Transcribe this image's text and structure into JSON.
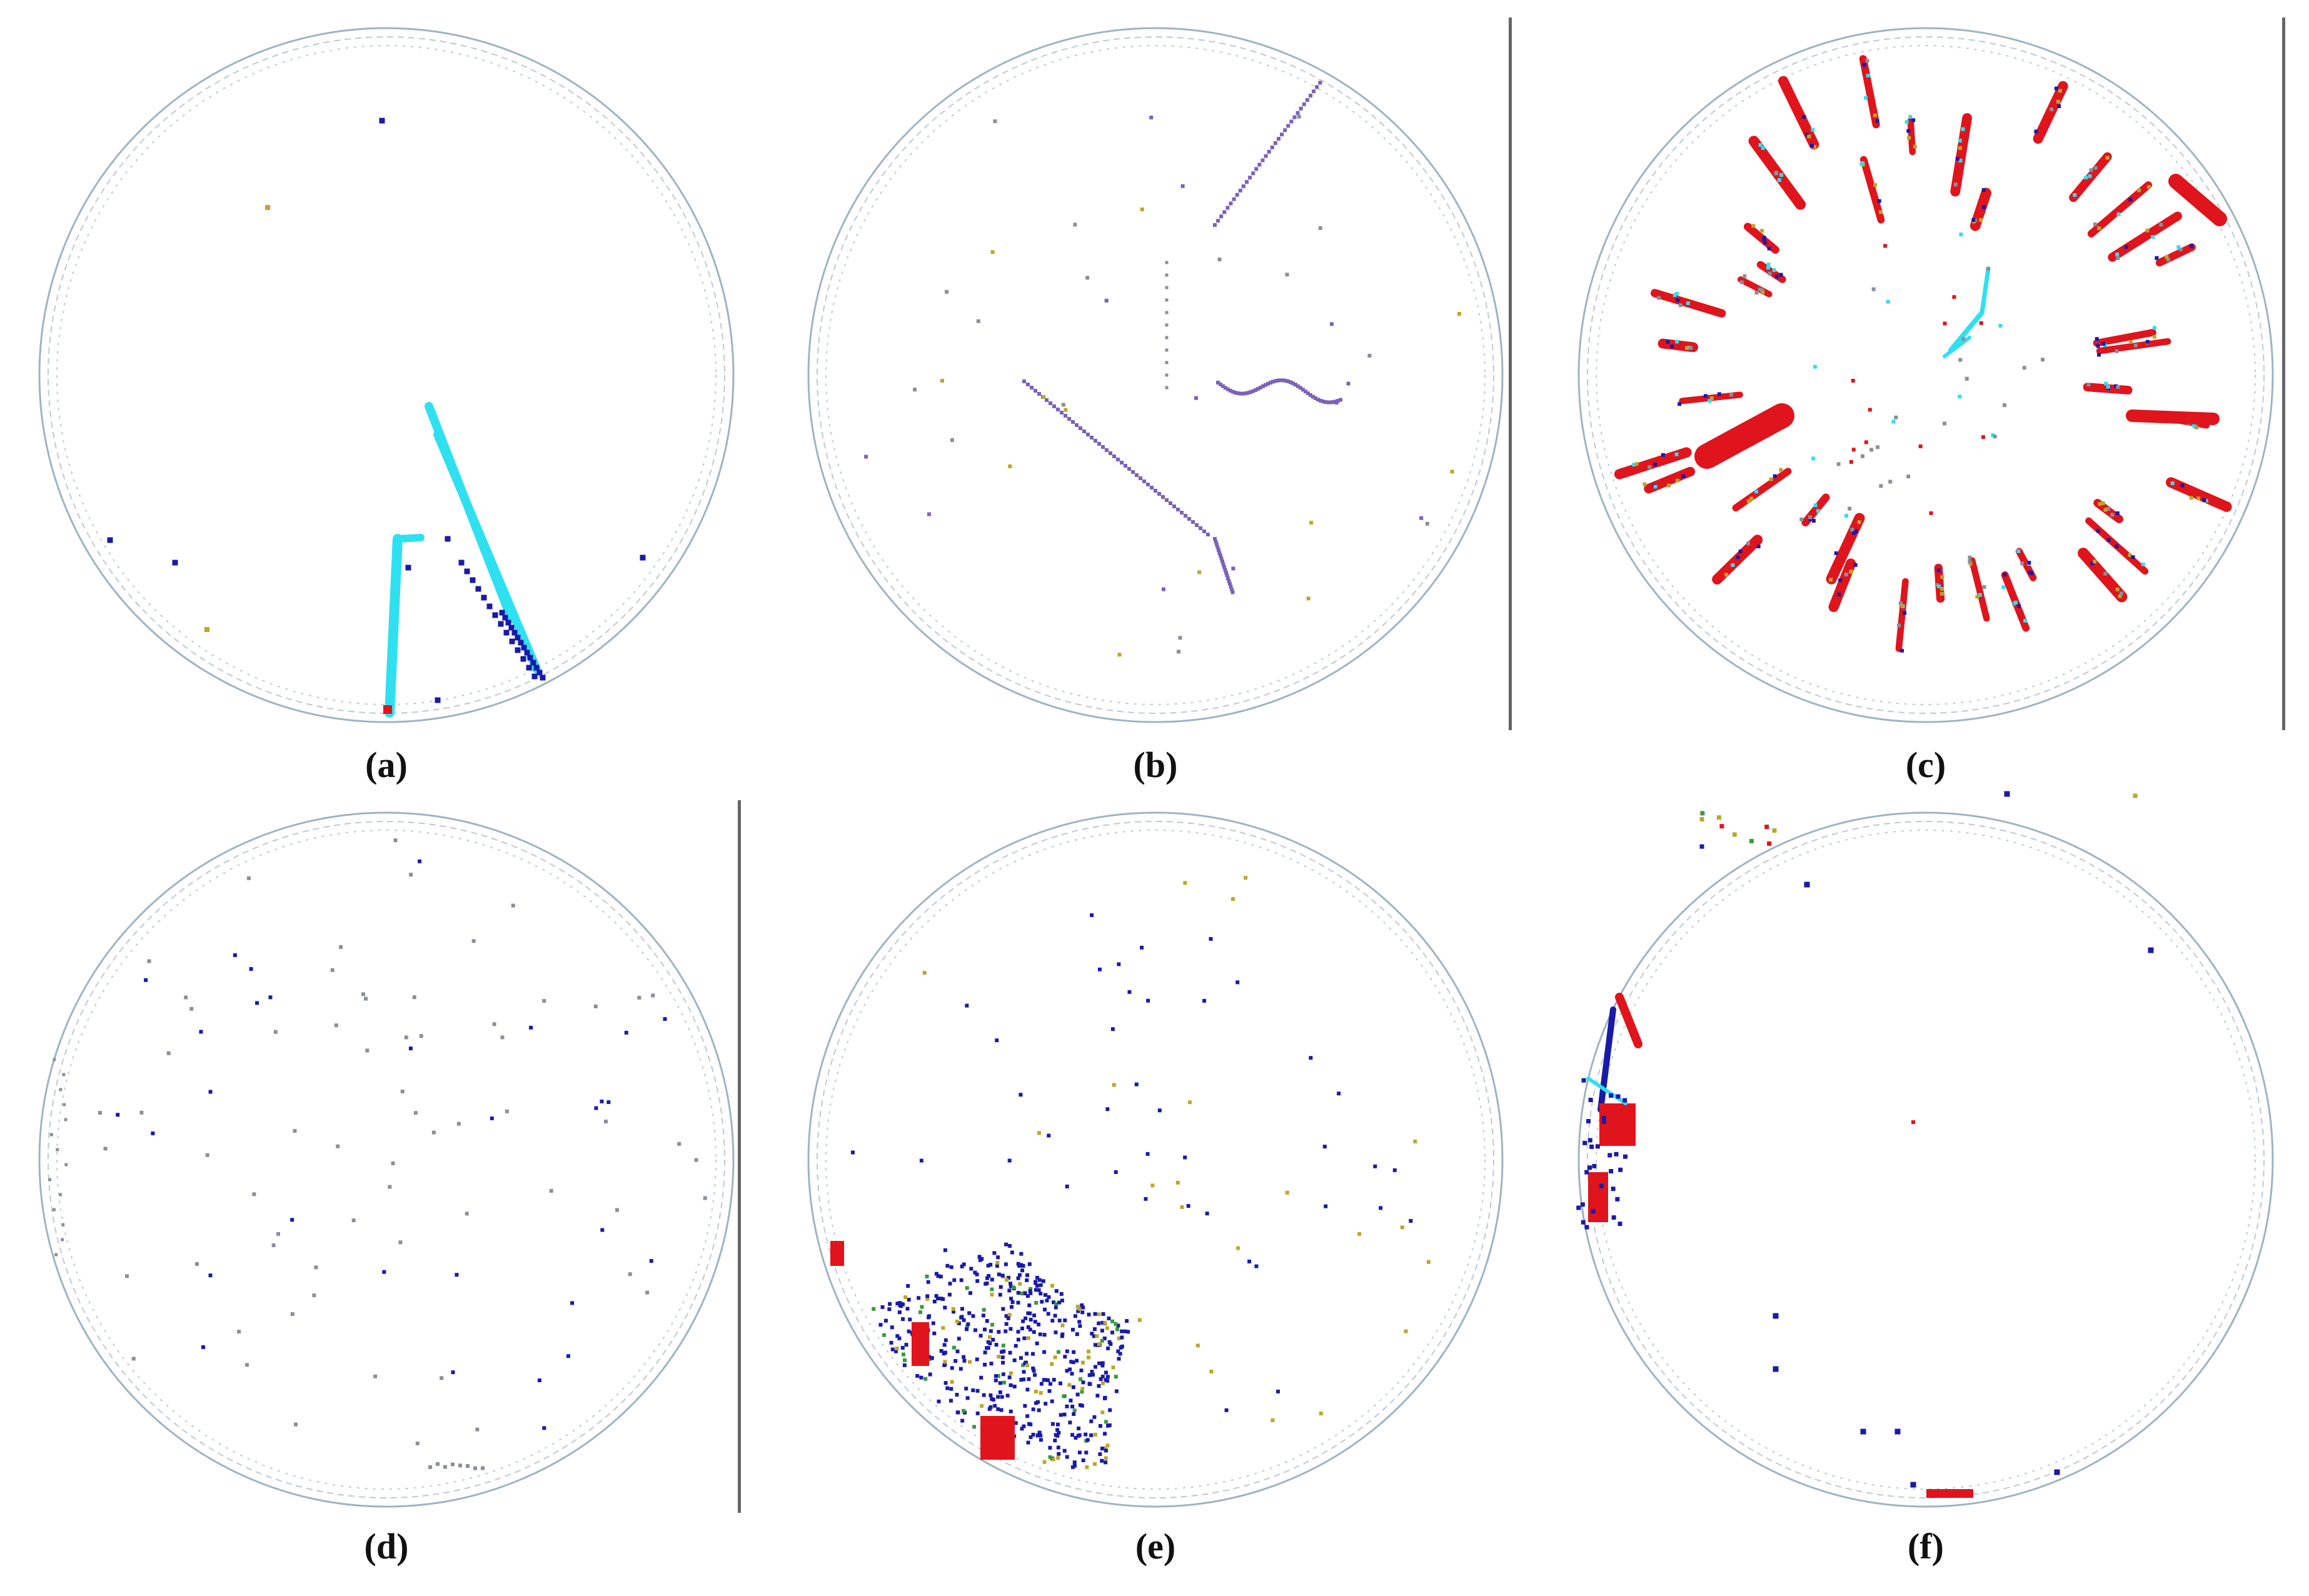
{
  "figure": {
    "panels": [
      {
        "id": "a",
        "label": "(a)"
      },
      {
        "id": "b",
        "label": "(b)"
      },
      {
        "id": "c",
        "label": "(c)"
      },
      {
        "id": "d",
        "label": "(d)"
      },
      {
        "id": "e",
        "label": "(e)"
      },
      {
        "id": "f",
        "label": "(f)"
      }
    ]
  },
  "colors": {
    "ring": "#8fa7b5",
    "cyan": "#2fe0f0",
    "blue": "#1a1aa8",
    "red": "#e0141c",
    "purple": "#7b62b8",
    "olive": "#b8a82a",
    "orange": "#d89a38",
    "gray": "#8a8f98",
    "green": "#3a9a3a",
    "divider": "#666666"
  }
}
